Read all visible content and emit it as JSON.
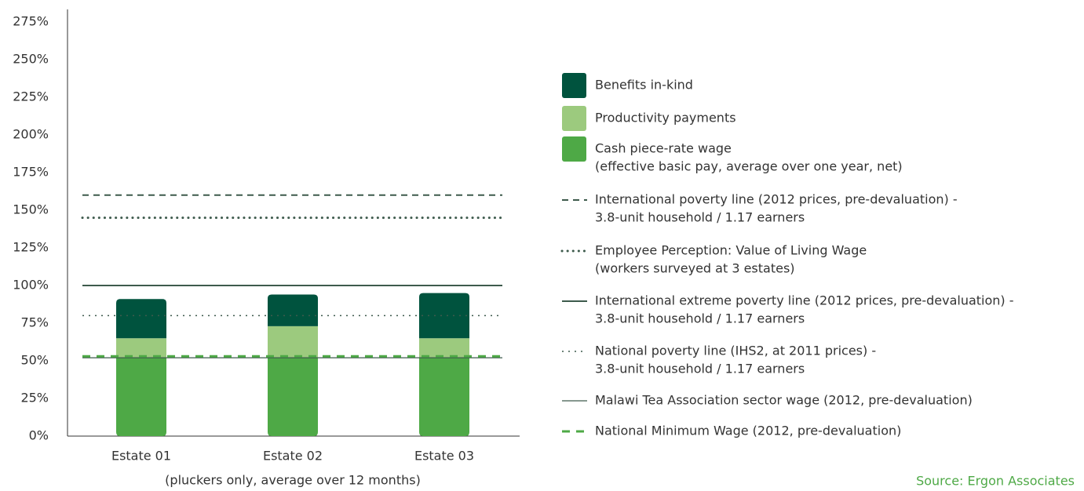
{
  "chart_data": {
    "type": "stacked_bar",
    "categories": [
      "Estate 01",
      "Estate 02",
      "Estate 03"
    ],
    "x_label": "(pluckers only, average over 12 months)",
    "series": [
      {
        "name_lines": [
          "Cash piece-rate wage",
          "(effective basic pay, average over one year, net)"
        ],
        "color": "#4ea946",
        "values": [
          52,
          52,
          52
        ]
      },
      {
        "name_lines": [
          "Productivity payments"
        ],
        "color": "#9cca7e",
        "values": [
          13,
          21,
          13
        ]
      },
      {
        "name_lines": [
          "Benefits in-kind"
        ],
        "color": "#00533e",
        "values": [
          26,
          21,
          30
        ]
      }
    ],
    "reference_lines": [
      {
        "name_lines": [
          "International poverty line (2012 prices, pre-devaluation) -",
          "3.8-unit household / 1.17 earners"
        ],
        "value": 160,
        "style": "dashed",
        "color": "#3d5a4c"
      },
      {
        "name_lines": [
          "Employee Perception: Value of Living Wage",
          "(workers surveyed at 3 estates)"
        ],
        "value": 145,
        "style": "dotted-bold",
        "color": "#3d5a4c"
      },
      {
        "name_lines": [
          "International extreme poverty line (2012 prices, pre-devaluation) -",
          "3.8-unit household / 1.17 earners"
        ],
        "value": 100,
        "style": "solid-bold",
        "color": "#3d5a4c"
      },
      {
        "name_lines": [
          "National poverty line (IHS2, at 2011 prices) -",
          "3.8-unit household / 1.17 earners"
        ],
        "value": 80,
        "style": "dotted",
        "color": "#3d5a4c"
      },
      {
        "name_lines": [
          "Malawi Tea Association sector wage (2012, pre-devaluation)"
        ],
        "value": 52,
        "style": "solid",
        "color": "#3d5a4c"
      },
      {
        "name_lines": [
          "National Minimum Wage (2012, pre-devaluation)"
        ],
        "value": 53,
        "style": "dashed-bold",
        "color": "#4ea946"
      }
    ],
    "ylim": [
      0,
      283
    ],
    "yticks": [
      {
        "value": 0,
        "label": "0%"
      },
      {
        "value": 25,
        "label": "25%"
      },
      {
        "value": 50,
        "label": "50%"
      },
      {
        "value": 75,
        "label": "75%"
      },
      {
        "value": 100,
        "label": "100%"
      },
      {
        "value": 125,
        "label": "125%"
      },
      {
        "value": 150,
        "label": "150%"
      },
      {
        "value": 175,
        "label": "175%"
      },
      {
        "value": 200,
        "label": "200%"
      },
      {
        "value": 225,
        "label": "225%"
      },
      {
        "value": 250,
        "label": "250%"
      },
      {
        "value": 275,
        "label": "275%"
      }
    ],
    "source": "Source: Ergon Associates"
  }
}
